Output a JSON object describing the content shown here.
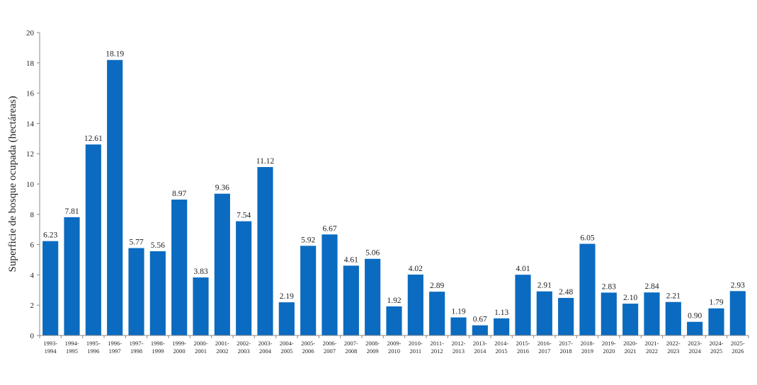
{
  "chart_data": {
    "type": "bar",
    "title": "",
    "xlabel": "",
    "ylabel": "Superficie de bosque ocupada (hectáreas)",
    "ylim": [
      0,
      20
    ],
    "yticks": [
      0,
      2,
      4,
      6,
      8,
      10,
      12,
      14,
      16,
      18,
      20
    ],
    "grid": false,
    "legend": "none",
    "bar_color": "#0a6bc0",
    "categories": [
      [
        "1993-",
        "1994"
      ],
      [
        "1994-",
        "1995"
      ],
      [
        "1995-",
        "1996"
      ],
      [
        "1996-",
        "1997"
      ],
      [
        "1997-",
        "1998"
      ],
      [
        "1998-",
        "1999"
      ],
      [
        "1999-",
        "2000"
      ],
      [
        "2000-",
        "2001"
      ],
      [
        "2001-",
        "2002"
      ],
      [
        "2002-",
        "2003"
      ],
      [
        "2003-",
        "2004"
      ],
      [
        "2004-",
        "2005"
      ],
      [
        "2005-",
        "2006"
      ],
      [
        "2006-",
        "2007"
      ],
      [
        "2007-",
        "2008"
      ],
      [
        "2008-",
        "2009"
      ],
      [
        "2009-",
        "2010"
      ],
      [
        "2010-",
        "2011"
      ],
      [
        "2011-",
        "2012"
      ],
      [
        "2012-",
        "2013"
      ],
      [
        "2013-",
        "2014"
      ],
      [
        "2014-",
        "2015"
      ],
      [
        "2015-",
        "2016"
      ],
      [
        "2016-",
        "2017"
      ],
      [
        "2017-",
        "2018"
      ],
      [
        "2018-",
        "2019"
      ],
      [
        "2019-",
        "2020"
      ],
      [
        "2020-",
        "2021"
      ],
      [
        "2021-",
        "2022"
      ],
      [
        "2022-",
        "2023"
      ],
      [
        "2023-",
        "2024"
      ],
      [
        "2024-",
        "2025"
      ],
      [
        "2025-",
        "2026"
      ]
    ],
    "values": [
      6.23,
      7.81,
      12.61,
      18.19,
      5.77,
      5.56,
      8.97,
      3.83,
      9.36,
      7.54,
      11.12,
      2.19,
      5.92,
      6.67,
      4.61,
      5.06,
      1.92,
      4.02,
      2.89,
      1.19,
      0.67,
      1.13,
      4.01,
      2.91,
      2.48,
      6.05,
      2.83,
      2.1,
      2.84,
      2.21,
      0.9,
      1.79,
      2.93
    ],
    "data_labels": [
      "6.23",
      "7.81",
      "12.61",
      "18.19",
      "5.77",
      "5.56",
      "8.97",
      "3.83",
      "9.36",
      "7.54",
      "11.12",
      "2.19",
      "5.92",
      "6.67",
      "4.61",
      "5.06",
      "1.92",
      "4.02",
      "2.89",
      "1.19",
      "0.67",
      "1.13",
      "4.01",
      "2.91",
      "2.48",
      "6.05",
      "2.83",
      "2.10",
      "2.84",
      "2.21",
      "0.90",
      "1.79",
      "2.93"
    ]
  }
}
